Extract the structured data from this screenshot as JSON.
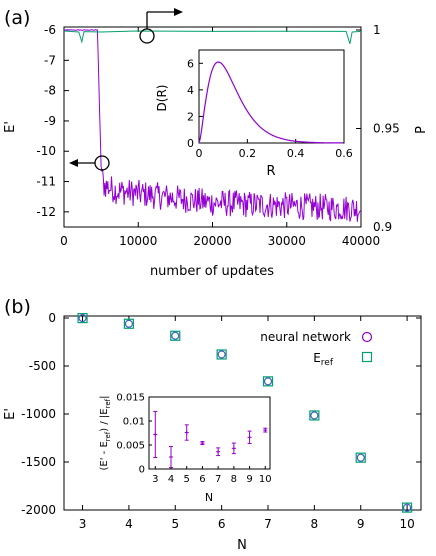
{
  "chart_data": [
    {
      "panel_label": "(a)",
      "type": "line",
      "xlabel": "number of updates",
      "ylabel_left": "E'",
      "ylabel_right": "P",
      "xlim": [
        0,
        40000
      ],
      "ylim_left": [
        -12.5,
        -5.9
      ],
      "ylim_right": [
        0.9,
        1.0
      ],
      "xticks": [
        0,
        10000,
        20000,
        30000,
        40000
      ],
      "yticks_left": [
        -6,
        -7,
        -8,
        -9,
        -10,
        -11,
        -12
      ],
      "yticks_right": [
        {
          "v": 1.0,
          "label": "1"
        },
        {
          "v": 0.95,
          "label": "0.95"
        },
        {
          "v": 0.9,
          "label": "0.9"
        }
      ],
      "series": [
        {
          "axis": "left",
          "color": "#9400d3",
          "description_points": [
            [
              0,
              -6.0
            ],
            [
              4500,
              -6.0
            ],
            [
              5000,
              -10.5
            ],
            [
              5300,
              -11.1
            ],
            [
              7000,
              -11.3
            ],
            [
              20000,
              -11.7
            ],
            [
              40000,
              -11.9
            ]
          ],
          "noise_amplitude": 0.45
        },
        {
          "axis": "right",
          "color": "#00a070",
          "points": [
            [
              0,
              0.9995
            ],
            [
              2000,
              0.999
            ],
            [
              2400,
              0.994
            ],
            [
              2700,
              0.9992
            ],
            [
              5000,
              0.999
            ],
            [
              10000,
              0.9995
            ],
            [
              20000,
              0.9993
            ],
            [
              30000,
              0.9994
            ],
            [
              38000,
              0.9993
            ],
            [
              38500,
              0.993
            ],
            [
              38800,
              0.999
            ],
            [
              40000,
              0.9993
            ]
          ]
        }
      ],
      "inset": {
        "type": "line",
        "xlabel": "R",
        "ylabel": "D(R)",
        "xlim": [
          0,
          0.6
        ],
        "ylim": [
          0,
          7
        ],
        "xticks": [
          0,
          0.2,
          0.4,
          0.6
        ],
        "yticks": [
          0,
          2,
          4,
          6
        ],
        "color": "#9400d3",
        "peak_x": 0.08,
        "peak_y": 6.1
      }
    },
    {
      "panel_label": "(b)",
      "type": "scatter",
      "xlabel": "N",
      "ylabel": "E'",
      "xlim": [
        2.6,
        10.3
      ],
      "ylim": [
        -2000,
        0
      ],
      "xticks": [
        3,
        4,
        5,
        6,
        7,
        8,
        9,
        10
      ],
      "yticks": [
        0,
        -500,
        -1000,
        -1500,
        -2000
      ],
      "x": [
        3,
        4,
        5,
        6,
        7,
        8,
        9,
        10
      ],
      "series": [
        {
          "name": "neural network",
          "marker": "circle",
          "color": "#9400d3",
          "values": [
            -1,
            -60,
            -185,
            -380,
            -660,
            -1015,
            -1455,
            -1975
          ]
        },
        {
          "name": "E",
          "name_sub": "ref",
          "marker": "square",
          "color": "#00a070",
          "values": [
            -1,
            -60,
            -185,
            -380,
            -660,
            -1015,
            -1455,
            -1975
          ]
        }
      ],
      "legend_position": "top-right",
      "inset": {
        "type": "errorbar",
        "xlabel": "N",
        "ylabel": "(E' - E",
        "ylabel_sub": "ref",
        "ylabel_rest": ") / |E",
        "ylabel_sub2": "ref",
        "ylabel_end": "|",
        "xlim": [
          2.6,
          10.3
        ],
        "ylim": [
          0,
          0.015
        ],
        "xticks": [
          3,
          4,
          5,
          6,
          7,
          8,
          9,
          10
        ],
        "yticks": [
          {
            "v": 0,
            "label": "0"
          },
          {
            "v": 0.005,
            "label": "0.005"
          },
          {
            "v": 0.01,
            "label": "0.01"
          },
          {
            "v": 0.015,
            "label": "0.015"
          }
        ],
        "x": [
          3,
          4,
          5,
          6,
          7,
          8,
          9,
          10
        ],
        "values": [
          0.0072,
          0.0025,
          0.0076,
          0.0054,
          0.0036,
          0.0043,
          0.0066,
          0.0081
        ],
        "errors": [
          0.0048,
          0.0022,
          0.0016,
          0.0003,
          0.0008,
          0.0011,
          0.0013,
          0.0004
        ],
        "color": "#9400d3"
      }
    }
  ]
}
